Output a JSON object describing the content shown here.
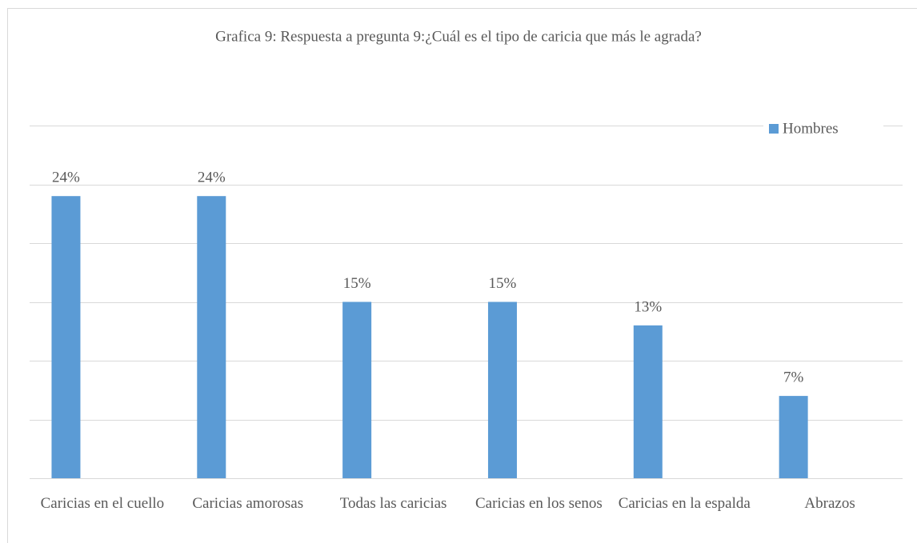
{
  "chart_data": {
    "type": "bar",
    "title": "Grafica 9: Respuesta a pregunta 9:¿Cuál es el tipo de caricia que más le agrada?",
    "categories": [
      "Caricias en el cuello",
      "Caricias amorosas",
      "Todas las caricias",
      "Caricias en los senos",
      "Caricias en la espalda",
      "Abrazos"
    ],
    "series": [
      {
        "name": "Hombres",
        "color": "#5b9bd5",
        "values": [
          24,
          24,
          15,
          15,
          13,
          7
        ],
        "value_labels": [
          "24%",
          "24%",
          "15%",
          "15%",
          "13%",
          "7%"
        ]
      }
    ],
    "ylim": [
      0,
      30
    ],
    "yticks": [
      0,
      5,
      10,
      15,
      20,
      25,
      30
    ],
    "grid": true,
    "legend": "top-right"
  }
}
